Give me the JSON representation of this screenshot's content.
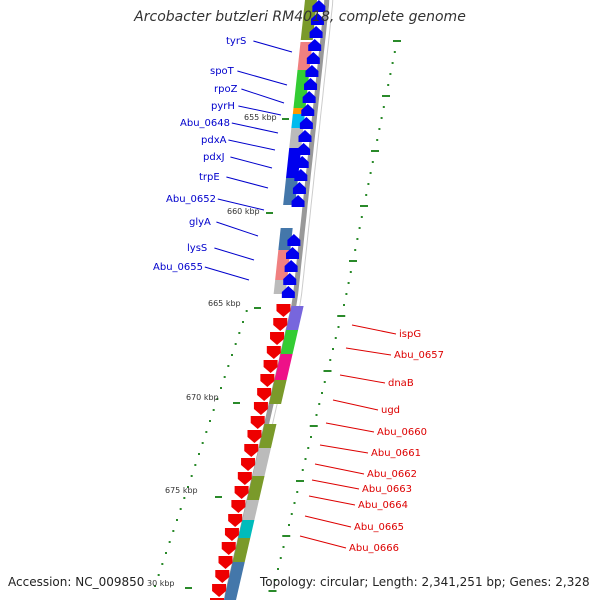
{
  "title": "Arcobacter butzleri RM4018, complete genome",
  "footer": {
    "accession": "Accession: NC_009850",
    "topology": "Topology: circular; Length: 2,341,251 bp; Genes: 2,328"
  },
  "kbp_labels": [
    "655 kbp",
    "660 kbp",
    "665 kbp",
    "670 kbp",
    "675 kbp",
    "30 kbp"
  ],
  "colors": {
    "forward_gene": "#0000ee",
    "reverse_gene": "#ee0000",
    "forward_label": "#0000cc",
    "reverse_label": "#dd0000",
    "backbone": "#888888",
    "tick": "#2a8a2a"
  },
  "forward_genes": [
    "tyrS",
    "spoT",
    "rpoZ",
    "pyrH",
    "Abu_0648",
    "pdxA",
    "pdxJ",
    "trpE",
    "Abu_0652",
    "glyA",
    "lysS",
    "Abu_0655"
  ],
  "reverse_genes": [
    "ispG",
    "Abu_0657",
    "dnaB",
    "ugd",
    "Abu_0660",
    "Abu_0661",
    "Abu_0662",
    "Abu_0663",
    "Abu_0664",
    "Abu_0665",
    "Abu_0666"
  ]
}
